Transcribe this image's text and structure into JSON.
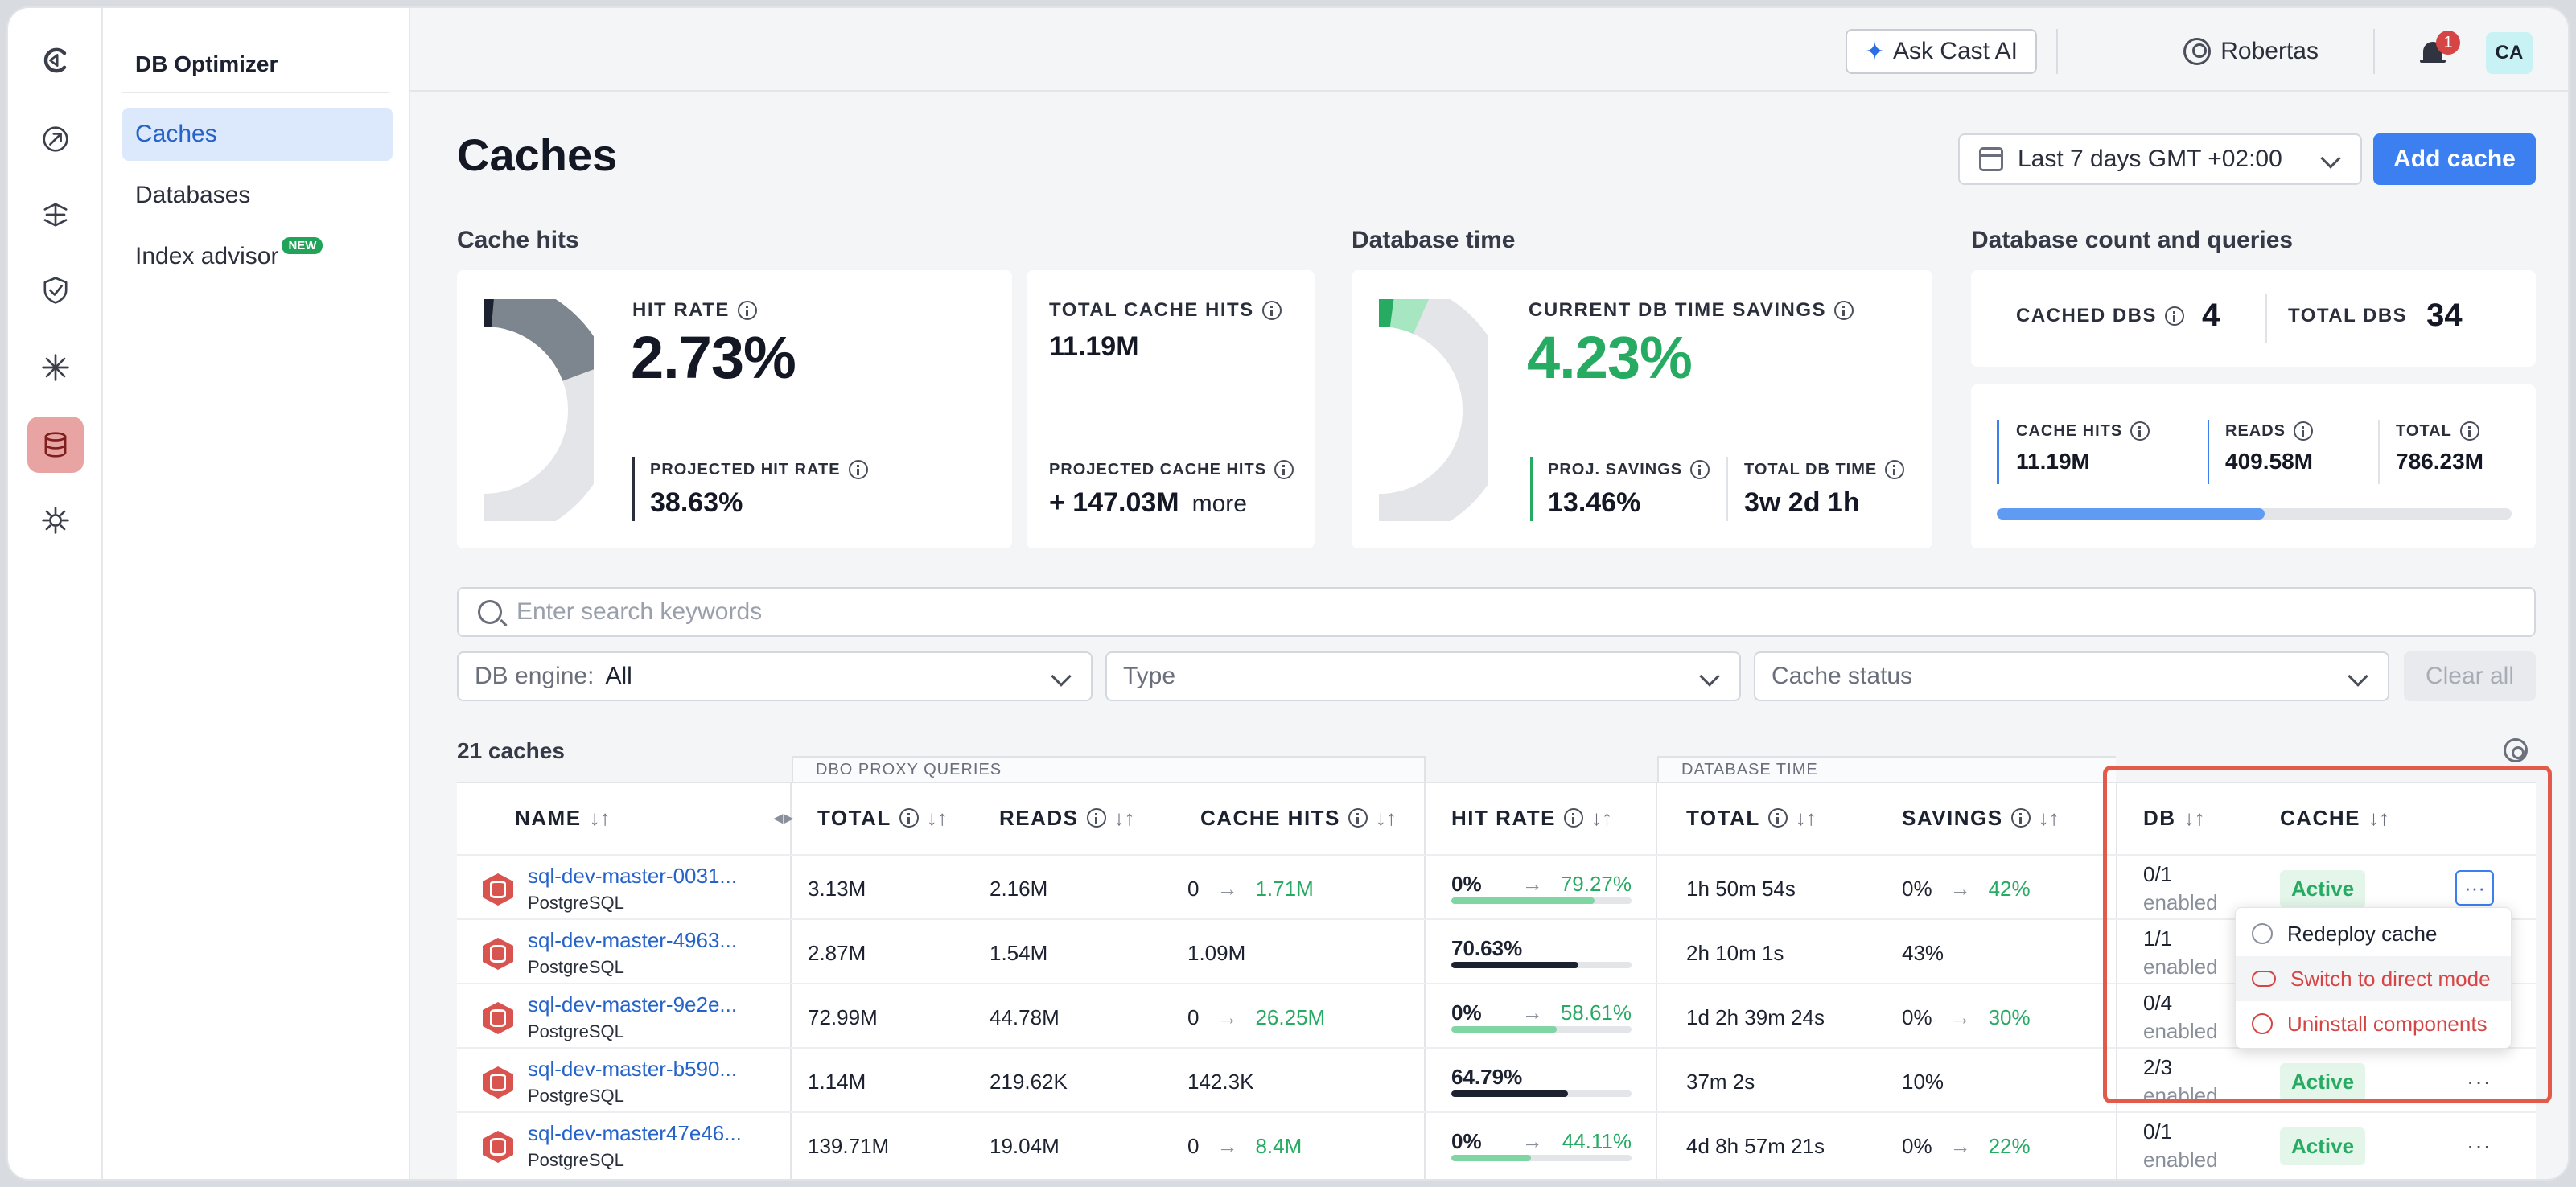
{
  "app": {
    "section_title": "DB Optimizer"
  },
  "nav": {
    "items": [
      {
        "label": "Caches",
        "active": true
      },
      {
        "label": "Databases"
      },
      {
        "label": "Index advisor",
        "badge": "NEW"
      }
    ]
  },
  "rail_icons": [
    "cast-ai-logo-icon",
    "rocket-icon",
    "kubernetes-icon",
    "shield-check-icon",
    "sparkle-burst-icon",
    "database-icon",
    "gear-network-icon"
  ],
  "header": {
    "ask_label": "Ask Cast AI",
    "user_name": "Robertas",
    "notifications": "1",
    "avatar": "CA"
  },
  "page": {
    "title": "Caches",
    "date_range": "Last 7 days GMT +02:00",
    "add_button": "Add cache"
  },
  "sections": {
    "cache_hits": "Cache hits",
    "database_time": "Database time",
    "db_count": "Database count and queries"
  },
  "hit_rate_card": {
    "label": "HIT RATE",
    "value": "2.73%",
    "projected_label": "PROJECTED HIT RATE",
    "projected_value": "38.63%",
    "gauge_fraction": 0.0273,
    "projected_fraction": 0.3863
  },
  "total_hits_card": {
    "label": "TOTAL CACHE HITS",
    "value": "11.19M",
    "projected_label": "PROJECTED CACHE HITS",
    "projected_value": "+ 147.03M",
    "more": "more"
  },
  "db_time_card": {
    "label": "CURRENT DB TIME SAVINGS",
    "value": "4.23%",
    "proj_label": "PROJ. SAVINGS",
    "proj_value": "13.46%",
    "total_label": "TOTAL DB TIME",
    "total_value": "3w 2d 1h",
    "gauge_fraction": 0.0423,
    "projected_fraction": 0.1346
  },
  "db_count_card": {
    "cached_label": "CACHED DBS",
    "cached_value": "4",
    "total_label": "TOTAL DBS",
    "total_value": "34"
  },
  "queries_card": {
    "hits_label": "CACHE HITS",
    "hits_value": "11.19M",
    "reads_label": "READS",
    "reads_value": "409.58M",
    "total_label": "TOTAL",
    "total_value": "786.23M",
    "progress_fraction": 0.52
  },
  "filters": {
    "search_placeholder": "Enter search keywords",
    "engine_label": "DB engine:",
    "engine_value": "All",
    "type_placeholder": "Type",
    "status_placeholder": "Cache status",
    "clear": "Clear all"
  },
  "table": {
    "count": "21 caches",
    "group_proxy": "DBO PROXY QUERIES",
    "group_dbtime": "DATABASE TIME",
    "headers": {
      "name": "NAME",
      "total": "TOTAL",
      "reads": "READS",
      "cache_hits": "CACHE HITS",
      "hit_rate": "HIT RATE",
      "db_total": "TOTAL",
      "savings": "SAVINGS",
      "db": "DB",
      "cache": "CACHE"
    },
    "rows": [
      {
        "name": "sql-dev-master-0031...",
        "engine": "PostgreSQL",
        "total": "3.13M",
        "reads": "2.16M",
        "hits": "0",
        "hits_proj": "1.71M",
        "rate": "0%",
        "rate_proj": "79.27%",
        "rate_fraction": 0.7927,
        "db_total": "1h 50m 54s",
        "savings": "0%",
        "savings_proj": "42%",
        "db": "0/1",
        "db_sub": "enabled",
        "cache": "Active"
      },
      {
        "name": "sql-dev-master-4963...",
        "engine": "PostgreSQL",
        "total": "2.87M",
        "reads": "1.54M",
        "hits": "1.09M",
        "hits_proj": "",
        "rate": "70.63%",
        "rate_proj": "",
        "rate_fraction": 0.7063,
        "db_total": "2h 10m 1s",
        "savings": "43%",
        "savings_proj": "",
        "db": "1/1",
        "db_sub": "enabled",
        "cache": ""
      },
      {
        "name": "sql-dev-master-9e2e...",
        "engine": "PostgreSQL",
        "total": "72.99M",
        "reads": "44.78M",
        "hits": "0",
        "hits_proj": "26.25M",
        "rate": "0%",
        "rate_proj": "58.61%",
        "rate_fraction": 0.5861,
        "db_total": "1d 2h 39m 24s",
        "savings": "0%",
        "savings_proj": "30%",
        "db": "0/4",
        "db_sub": "enabled",
        "cache": ""
      },
      {
        "name": "sql-dev-master-b590...",
        "engine": "PostgreSQL",
        "total": "1.14M",
        "reads": "219.62K",
        "hits": "142.3K",
        "hits_proj": "",
        "rate": "64.79%",
        "rate_proj": "",
        "rate_fraction": 0.6479,
        "db_total": "37m 2s",
        "savings": "10%",
        "savings_proj": "",
        "db": "2/3",
        "db_sub": "enabled",
        "cache": "Active"
      },
      {
        "name": "sql-dev-master47e46...",
        "engine": "PostgreSQL",
        "total": "139.71M",
        "reads": "19.04M",
        "hits": "0",
        "hits_proj": "8.4M",
        "rate": "0%",
        "rate_proj": "44.11%",
        "rate_fraction": 0.4411,
        "db_total": "4d 8h 57m 21s",
        "savings": "0%",
        "savings_proj": "22%",
        "db": "0/1",
        "db_sub": "enabled",
        "cache": "Active"
      }
    ]
  },
  "row_menu": {
    "items": [
      "Redeploy cache",
      "Switch to direct mode",
      "Uninstall components"
    ]
  },
  "colors": {
    "accent": "#3b7ff0",
    "green": "#27ab63",
    "danger": "#d64545",
    "highlight": "#e35a4a"
  }
}
